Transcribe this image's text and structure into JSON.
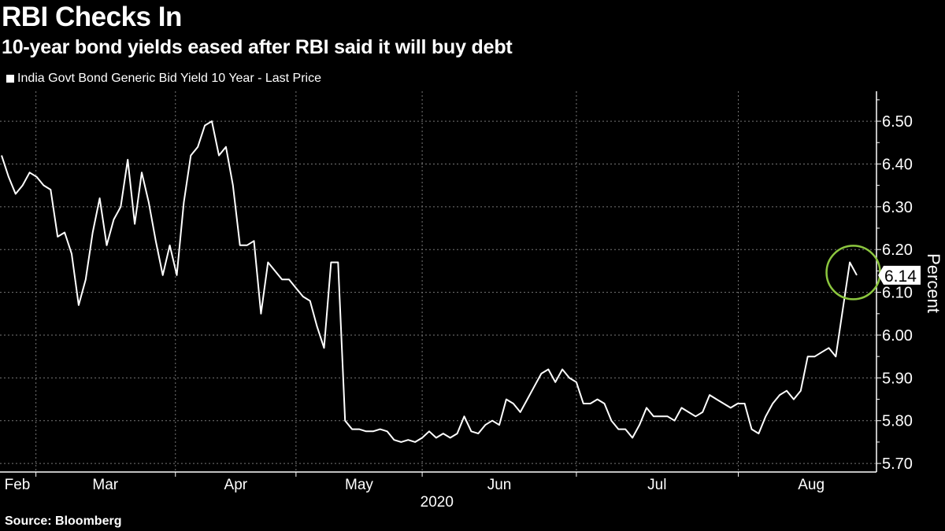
{
  "chart_data": {
    "type": "line",
    "title": "RBI Checks In",
    "subtitle": "10-year bond yields eased after RBI said it will buy debt",
    "legend": [
      {
        "label": "India Govt Bond Generic Bid Yield 10 Year - Last Price",
        "color": "#ffffff"
      }
    ],
    "legend_position": "top-left",
    "ylabel": "Percent",
    "xlabel": "2020",
    "ylim": [
      5.68,
      6.57
    ],
    "yticks": [
      "6.50",
      "6.40",
      "6.30",
      "6.20",
      "6.10",
      "6.00",
      "5.90",
      "5.80",
      "5.70"
    ],
    "grid": true,
    "x_month_labels": [
      {
        "label": "Feb",
        "index": 2.2
      },
      {
        "label": "Mar",
        "index": 14.8
      },
      {
        "label": "Apr",
        "index": 33.4
      },
      {
        "label": "May",
        "index": 51.0
      },
      {
        "label": "Jun",
        "index": 71.0
      },
      {
        "label": "Jul",
        "index": 93.5
      },
      {
        "label": "Aug",
        "index": 115.5
      }
    ],
    "x_month_boundaries": [
      4.9,
      24.8,
      42.0,
      60.0,
      82.0,
      105.1
    ],
    "year_label": {
      "label": "2020",
      "index": 62.1
    },
    "values": [
      6.42,
      6.37,
      6.33,
      6.35,
      6.38,
      6.37,
      6.35,
      6.34,
      6.23,
      6.24,
      6.19,
      6.07,
      6.13,
      6.24,
      6.32,
      6.21,
      6.27,
      6.3,
      6.41,
      6.26,
      6.38,
      6.31,
      6.22,
      6.14,
      6.21,
      6.14,
      6.31,
      6.42,
      6.44,
      6.49,
      6.5,
      6.42,
      6.44,
      6.35,
      6.21,
      6.21,
      6.22,
      6.05,
      6.17,
      6.15,
      6.13,
      6.13,
      6.11,
      6.09,
      6.08,
      6.02,
      5.97,
      6.17,
      6.17,
      5.8,
      5.78,
      5.78,
      5.775,
      5.775,
      5.78,
      5.775,
      5.755,
      5.75,
      5.755,
      5.75,
      5.76,
      5.775,
      5.76,
      5.77,
      5.76,
      5.77,
      5.81,
      5.775,
      5.77,
      5.79,
      5.8,
      5.79,
      5.85,
      5.84,
      5.82,
      5.85,
      5.88,
      5.91,
      5.92,
      5.89,
      5.92,
      5.9,
      5.89,
      5.84,
      5.84,
      5.85,
      5.84,
      5.8,
      5.78,
      5.78,
      5.76,
      5.79,
      5.83,
      5.81,
      5.81,
      5.81,
      5.8,
      5.83,
      5.82,
      5.81,
      5.82,
      5.86,
      5.85,
      5.84,
      5.83,
      5.84,
      5.84,
      5.78,
      5.77,
      5.81,
      5.84,
      5.86,
      5.87,
      5.85,
      5.87,
      5.95,
      5.95,
      5.96,
      5.97,
      5.95,
      6.06,
      6.17,
      6.14
    ],
    "last_value_label": "6.14",
    "annotation": {
      "type": "circle",
      "color": "#8cc63f",
      "around_index": 121.5,
      "around_value": 6.15
    }
  },
  "source": "Source: Bloomberg"
}
